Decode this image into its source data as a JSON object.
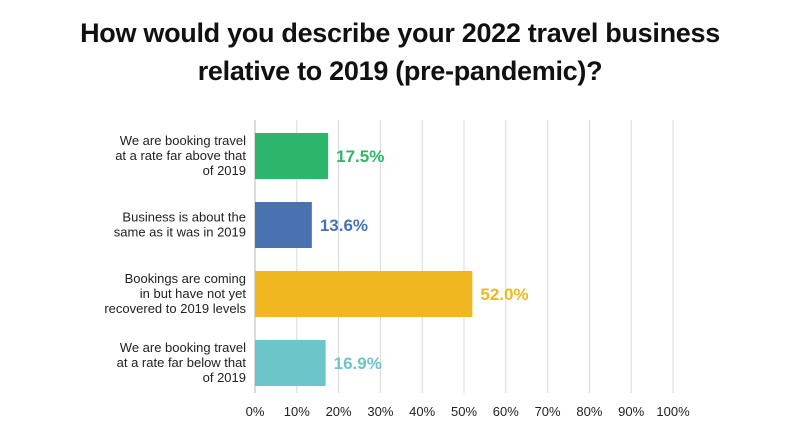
{
  "chart_data": {
    "type": "bar",
    "orientation": "horizontal",
    "title": "How would you describe your 2022 travel business relative to 2019 (pre-pandemic)?",
    "title_lines": [
      "How would you describe your 2022 travel business",
      "relative to 2019 (pre-pandemic)?"
    ],
    "categories": [
      [
        "We are booking travel",
        "at a rate far above that",
        "of 2019"
      ],
      [
        "Business is about the",
        "same as it was in 2019"
      ],
      [
        "Bookings are coming",
        "in but have not yet",
        "recovered to 2019 levels"
      ],
      [
        "We are booking travel",
        "at a rate far below that",
        "of 2019"
      ]
    ],
    "values": [
      17.5,
      13.6,
      52.0,
      16.9
    ],
    "value_labels": [
      "17.5%",
      "13.6%",
      "52.0%",
      "16.9%"
    ],
    "colors": [
      "#2db56b",
      "#4b72b0",
      "#efb821",
      "#6cc5c9"
    ],
    "xlim": [
      0,
      100
    ],
    "xticks": [
      "0%",
      "10%",
      "20%",
      "30%",
      "40%",
      "50%",
      "60%",
      "70%",
      "80%",
      "90%",
      "100%"
    ],
    "grid": true,
    "legend": "none"
  }
}
